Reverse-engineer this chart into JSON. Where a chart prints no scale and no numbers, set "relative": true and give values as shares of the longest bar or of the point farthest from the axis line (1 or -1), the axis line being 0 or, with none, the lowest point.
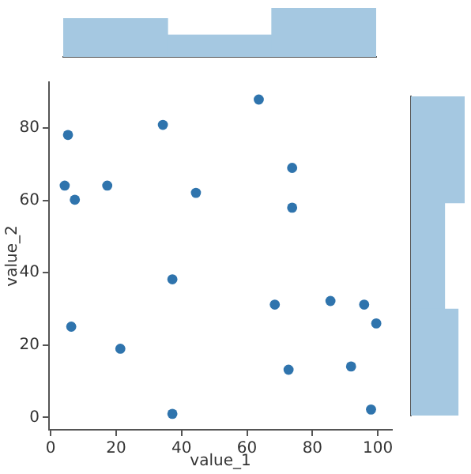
{
  "chart_data": [
    {
      "type": "bar",
      "categories": [
        null,
        null,
        null
      ],
      "values": [
        0.778,
        0.444,
        1
      ],
      "relative": true,
      "color": "#a5c8e1"
    },
    {
      "type": "scatter",
      "xlabel": "value_1",
      "ylabel": "value_2",
      "x": [
        5.3,
        34.3,
        63.6,
        4.3,
        7.4,
        17.3,
        44.4,
        73.8,
        73.8,
        6.3,
        21.3,
        37.2,
        37.2,
        68.5,
        72.7,
        85.5,
        91.8,
        95.8,
        99.5,
        97.9
      ],
      "values": [
        78.1,
        80.9,
        87.9,
        64.1,
        60.2,
        64.1,
        62.1,
        69,
        58,
        25.1,
        19,
        38.2,
        1,
        31.2,
        13.2,
        32.2,
        14.1,
        31.2,
        26,
        2.2
      ],
      "color": "#2f74ad",
      "marker": "circle",
      "xlim": [
        -0.5,
        104.3
      ],
      "ylim": [
        -3.4,
        92.7
      ],
      "xticks": [
        0,
        20,
        40,
        60,
        80,
        100
      ],
      "yticks": [
        0,
        20,
        40,
        60,
        80
      ]
    },
    {
      "type": "bar",
      "orientation": "horizontal",
      "categories": [
        null,
        null,
        null
      ],
      "values": [
        1,
        0.625,
        0.875
      ],
      "relative": true,
      "color": "#a5c8e1"
    }
  ]
}
